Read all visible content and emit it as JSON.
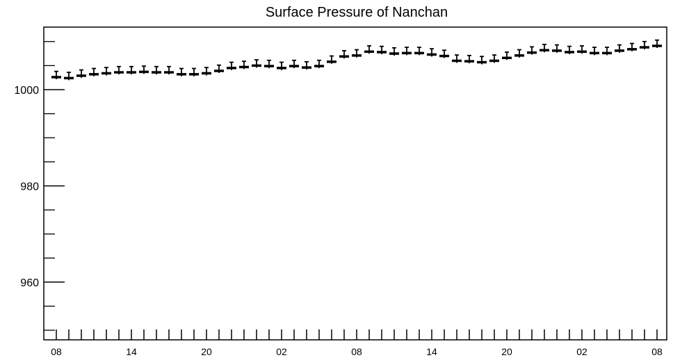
{
  "chart_data": {
    "type": "scatter",
    "title": "Surface Pressure of Nanchan",
    "xlabel": "",
    "ylabel": "",
    "ylim": [
      948,
      1013
    ],
    "x_tick_labels": [
      "08",
      "14",
      "20",
      "02",
      "08",
      "14",
      "20",
      "02",
      "08"
    ],
    "y_tick_labels": [
      "960",
      "980",
      "1000"
    ],
    "y_ticks": [
      960,
      980,
      1000
    ],
    "x_start_hour": 8,
    "x_step_hours": 1,
    "grid": false,
    "legend": "none",
    "marker": "horizontal bar with vertical error bar",
    "series": [
      {
        "values": [
          1002.6,
          1002.4,
          1002.9,
          1003.2,
          1003.4,
          1003.6,
          1003.6,
          1003.7,
          1003.6,
          1003.6,
          1003.2,
          1003.2,
          1003.4,
          1003.9,
          1004.5,
          1004.7,
          1005.0,
          1004.9,
          1004.5,
          1004.9,
          1004.6,
          1004.9,
          1005.8,
          1006.9,
          1007.1,
          1007.9,
          1007.8,
          1007.5,
          1007.6,
          1007.6,
          1007.3,
          1007.0,
          1006.0,
          1005.9,
          1005.7,
          1006.0,
          1006.6,
          1007.1,
          1007.7,
          1008.2,
          1008.1,
          1007.8,
          1007.9,
          1007.6,
          1007.6,
          1008.1,
          1008.4,
          1008.8,
          1009.1
        ],
        "error": 1.2
      }
    ]
  }
}
